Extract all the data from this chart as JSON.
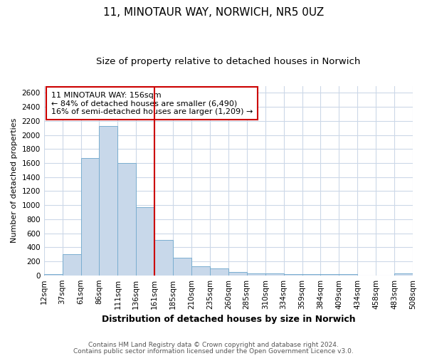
{
  "title": "11, MINOTAUR WAY, NORWICH, NR5 0UZ",
  "subtitle": "Size of property relative to detached houses in Norwich",
  "xlabel": "Distribution of detached houses by size in Norwich",
  "ylabel": "Number of detached properties",
  "bar_labels": [
    "12sqm",
    "37sqm",
    "61sqm",
    "86sqm",
    "111sqm",
    "136sqm",
    "161sqm",
    "185sqm",
    "210sqm",
    "235sqm",
    "260sqm",
    "285sqm",
    "310sqm",
    "334sqm",
    "359sqm",
    "384sqm",
    "409sqm",
    "434sqm",
    "458sqm",
    "483sqm",
    "508sqm"
  ],
  "bar_heights": [
    20,
    300,
    1670,
    2130,
    1600,
    970,
    500,
    250,
    125,
    95,
    45,
    30,
    25,
    20,
    15,
    15,
    15,
    0,
    0,
    25,
    0
  ],
  "bar_color": "#c8d8ea",
  "bar_edge_color": "#7aaed0",
  "vline_color": "#cc0000",
  "ylim": [
    0,
    2700
  ],
  "yticks": [
    0,
    200,
    400,
    600,
    800,
    1000,
    1200,
    1400,
    1600,
    1800,
    2000,
    2200,
    2400,
    2600
  ],
  "annotation_text": "11 MINOTAUR WAY: 156sqm\n← 84% of detached houses are smaller (6,490)\n16% of semi-detached houses are larger (1,209) →",
  "annotation_box_color": "#ffffff",
  "annotation_box_edge_color": "#cc0000",
  "footer_line1": "Contains HM Land Registry data © Crown copyright and database right 2024.",
  "footer_line2": "Contains public sector information licensed under the Open Government Licence v3.0.",
  "bg_color": "#ffffff",
  "grid_color": "#ccd8e8",
  "title_fontsize": 11,
  "subtitle_fontsize": 9.5,
  "annotation_fontsize": 8,
  "xlabel_fontsize": 9,
  "ylabel_fontsize": 8,
  "tick_fontsize": 7.5,
  "footer_fontsize": 6.5
}
